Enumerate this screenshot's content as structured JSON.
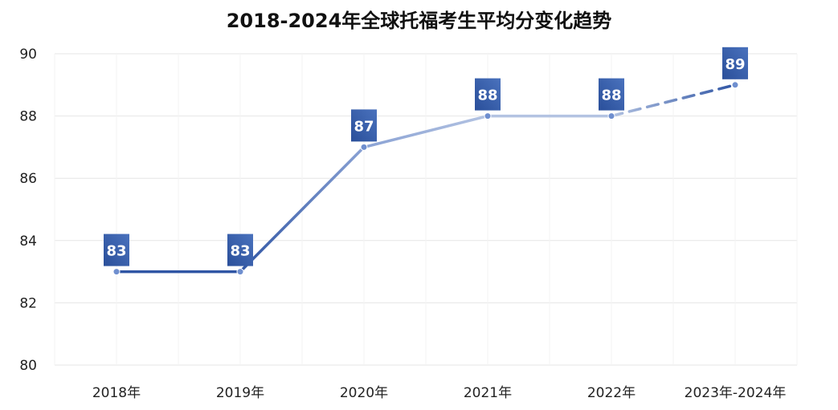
{
  "chart_data": {
    "type": "line",
    "title": "2018-2024年全球托福考生平均分变化趋势",
    "categories": [
      "2018年",
      "2019年",
      "2020年",
      "2021年",
      "2022年",
      "2023年-2024年"
    ],
    "values": [
      83,
      83,
      87,
      88,
      88,
      89
    ],
    "data_labels": [
      "83",
      "83",
      "87",
      "88",
      "88",
      "89"
    ],
    "dashed_last_segment": true,
    "ylim": [
      80,
      90
    ],
    "yticks": [
      80,
      82,
      84,
      86,
      88,
      90
    ],
    "ytick_labels": [
      "80",
      "82",
      "84",
      "86",
      "88",
      "90"
    ],
    "xlabel": "",
    "ylabel": "",
    "grid": true,
    "legend": "none",
    "colors": {
      "line_dark": "#2f55a4",
      "line_light": "#b3c3e2",
      "label_bg_dark": "#2a4f9a",
      "label_bg_light": "#4a72bd",
      "grid": "#e6e6e6",
      "point": "#6f8fcf"
    }
  }
}
